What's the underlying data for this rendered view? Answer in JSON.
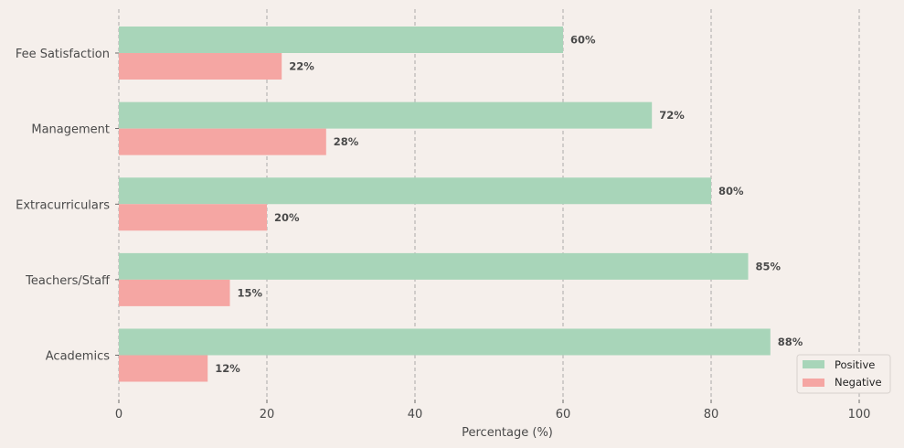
{
  "chart_data": {
    "type": "bar",
    "orientation": "horizontal",
    "categories": [
      "Fee Satisfaction",
      "Management",
      "Extracurriculars",
      "Teachers/Staff",
      "Academics"
    ],
    "series": [
      {
        "name": "Positive",
        "values": [
          60,
          72,
          80,
          85,
          88
        ],
        "labels": [
          "60%",
          "72%",
          "80%",
          "85%",
          "88%"
        ],
        "color": "#a8d5b9"
      },
      {
        "name": "Negative",
        "values": [
          22,
          28,
          20,
          15,
          12
        ],
        "labels": [
          "22%",
          "28%",
          "20%",
          "15%",
          "12%"
        ],
        "color": "#f5a6a3"
      }
    ],
    "xlabel": "Percentage (%)",
    "ylabel": "",
    "xlim": [
      0,
      100
    ],
    "xticks": [
      0,
      20,
      40,
      60,
      80,
      100
    ],
    "xtick_labels": [
      "0",
      "20",
      "40",
      "60",
      "80",
      "100"
    ],
    "grid": "vertical-dashed",
    "legend_position": "bottom-right",
    "background": "#f5efeb"
  }
}
